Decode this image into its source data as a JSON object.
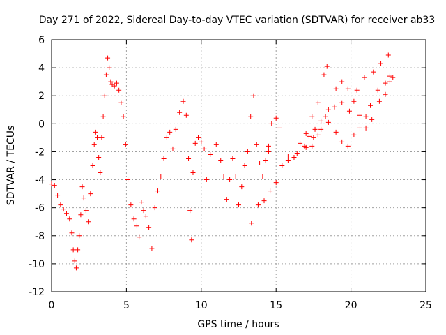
{
  "chart_data": {
    "type": "scatter",
    "title": "Day 271 of 2022, Sidereal Day-to-day VTEC variation (SDTVAR) for receiver ab33",
    "xlabel": "GPS time / hours",
    "ylabel": "SDTVAR / TECUs",
    "xlim": [
      0,
      25
    ],
    "ylim": [
      -12,
      6
    ],
    "xticks": [
      0,
      5,
      10,
      15,
      20,
      25
    ],
    "xtick_labels": [
      "0",
      "5",
      "10",
      "15",
      "20",
      "25"
    ],
    "yticks": [
      -12,
      -10,
      -8,
      -6,
      -4,
      -2,
      0,
      2,
      4,
      6
    ],
    "ytick_labels": [
      "-12",
      "-10",
      "-8",
      "-6",
      "-4",
      "-2",
      "0",
      "2",
      "4",
      "6"
    ],
    "grid": true,
    "marker": "+",
    "color": "#ff0000",
    "series": [
      {
        "name": "SDTVAR",
        "points": [
          [
            0.0,
            -4.3
          ],
          [
            0.2,
            -4.4
          ],
          [
            0.4,
            -5.1
          ],
          [
            0.6,
            -5.8
          ],
          [
            0.8,
            -6.1
          ],
          [
            1.0,
            -6.4
          ],
          [
            1.2,
            -6.8
          ],
          [
            1.35,
            -7.8
          ],
          [
            1.45,
            -9.0
          ],
          [
            1.55,
            -9.8
          ],
          [
            1.65,
            -10.3
          ],
          [
            1.75,
            -9.0
          ],
          [
            1.85,
            -8.0
          ],
          [
            1.95,
            -6.5
          ],
          [
            2.05,
            -4.5
          ],
          [
            2.15,
            -5.3
          ],
          [
            2.3,
            -6.2
          ],
          [
            2.45,
            -7.0
          ],
          [
            2.6,
            -5.0
          ],
          [
            2.75,
            -3.0
          ],
          [
            2.85,
            -1.5
          ],
          [
            2.95,
            -0.6
          ],
          [
            3.05,
            -1.0
          ],
          [
            3.15,
            -2.4
          ],
          [
            3.25,
            -3.5
          ],
          [
            3.35,
            -1.0
          ],
          [
            3.45,
            0.5
          ],
          [
            3.55,
            2.0
          ],
          [
            3.65,
            3.5
          ],
          [
            3.75,
            4.7
          ],
          [
            3.85,
            4.0
          ],
          [
            3.95,
            3.0
          ],
          [
            4.05,
            2.8
          ],
          [
            4.2,
            2.7
          ],
          [
            4.35,
            2.9
          ],
          [
            4.5,
            2.4
          ],
          [
            4.65,
            1.5
          ],
          [
            4.8,
            0.5
          ],
          [
            4.95,
            -1.5
          ],
          [
            5.1,
            -4.0
          ],
          [
            5.3,
            -5.8
          ],
          [
            5.5,
            -6.8
          ],
          [
            5.7,
            -7.3
          ],
          [
            5.85,
            -8.1
          ],
          [
            6.0,
            -5.6
          ],
          [
            6.15,
            -6.2
          ],
          [
            6.3,
            -6.6
          ],
          [
            6.5,
            -7.4
          ],
          [
            6.7,
            -8.9
          ],
          [
            6.9,
            -6.0
          ],
          [
            7.1,
            -4.8
          ],
          [
            7.3,
            -3.8
          ],
          [
            7.5,
            -2.5
          ],
          [
            7.7,
            -1.0
          ],
          [
            7.9,
            -0.6
          ],
          [
            8.1,
            -1.8
          ],
          [
            8.3,
            -0.4
          ],
          [
            8.55,
            0.8
          ],
          [
            8.8,
            1.6
          ],
          [
            9.0,
            0.6
          ],
          [
            9.15,
            -2.5
          ],
          [
            9.25,
            -6.2
          ],
          [
            9.35,
            -8.3
          ],
          [
            9.45,
            -3.5
          ],
          [
            9.6,
            -1.4
          ],
          [
            9.8,
            -1.0
          ],
          [
            10.0,
            -1.3
          ],
          [
            10.2,
            -1.8
          ],
          [
            10.35,
            -4.0
          ],
          [
            10.6,
            -2.2
          ],
          [
            11.0,
            -1.5
          ],
          [
            11.3,
            -2.6
          ],
          [
            11.5,
            -3.8
          ],
          [
            11.7,
            -5.4
          ],
          [
            11.9,
            -4.0
          ],
          [
            12.1,
            -2.5
          ],
          [
            12.3,
            -3.8
          ],
          [
            12.5,
            -5.8
          ],
          [
            12.7,
            -4.5
          ],
          [
            12.9,
            -3.0
          ],
          [
            13.1,
            -2.0
          ],
          [
            13.3,
            0.5
          ],
          [
            13.5,
            2.0
          ],
          [
            13.7,
            -1.5
          ],
          [
            13.9,
            -2.8
          ],
          [
            14.1,
            -3.8
          ],
          [
            14.3,
            -2.6
          ],
          [
            14.5,
            -1.6
          ],
          [
            14.7,
            0.0
          ],
          [
            15.0,
            0.4
          ],
          [
            15.2,
            -0.3
          ],
          [
            13.35,
            -7.1
          ],
          [
            13.8,
            -5.8
          ],
          [
            14.2,
            -5.5
          ],
          [
            14.6,
            -4.8
          ],
          [
            15.0,
            -4.2
          ],
          [
            15.4,
            -3.0
          ],
          [
            15.8,
            -2.3
          ],
          [
            16.2,
            -2.4
          ],
          [
            16.6,
            -1.4
          ],
          [
            17.0,
            -0.7
          ],
          [
            17.4,
            0.5
          ],
          [
            17.8,
            1.5
          ],
          [
            18.2,
            3.5
          ],
          [
            18.4,
            4.1
          ],
          [
            14.5,
            -2.0
          ],
          [
            15.2,
            -2.3
          ],
          [
            15.8,
            -2.6
          ],
          [
            16.4,
            -2.1
          ],
          [
            16.9,
            -1.6
          ],
          [
            17.4,
            -1.6
          ],
          [
            17.8,
            -0.8
          ],
          [
            18.3,
            0.5
          ],
          [
            18.9,
            1.2
          ],
          [
            19.4,
            1.5
          ],
          [
            19.9,
            0.9
          ],
          [
            20.4,
            2.4
          ],
          [
            20.9,
            3.3
          ],
          [
            21.5,
            3.7
          ],
          [
            22.0,
            4.3
          ],
          [
            22.5,
            4.9
          ],
          [
            22.8,
            3.3
          ],
          [
            17.2,
            -0.9
          ],
          [
            17.6,
            -0.4
          ],
          [
            18.0,
            0.2
          ],
          [
            18.5,
            1.0
          ],
          [
            19.0,
            2.5
          ],
          [
            19.4,
            3.0
          ],
          [
            19.8,
            2.5
          ],
          [
            20.2,
            1.6
          ],
          [
            20.6,
            0.6
          ],
          [
            21.0,
            -0.3
          ],
          [
            21.4,
            0.3
          ],
          [
            21.9,
            1.6
          ],
          [
            22.3,
            2.1
          ],
          [
            22.6,
            3.0
          ],
          [
            17.0,
            -1.7
          ],
          [
            17.5,
            -1.0
          ],
          [
            18.0,
            -0.4
          ],
          [
            18.5,
            0.1
          ],
          [
            19.0,
            -0.6
          ],
          [
            19.4,
            -1.3
          ],
          [
            19.8,
            -1.6
          ],
          [
            20.2,
            -0.8
          ],
          [
            20.6,
            -0.3
          ],
          [
            21.0,
            0.5
          ],
          [
            21.3,
            1.3
          ],
          [
            21.8,
            2.4
          ],
          [
            22.3,
            2.9
          ],
          [
            22.6,
            3.4
          ]
        ]
      }
    ]
  }
}
